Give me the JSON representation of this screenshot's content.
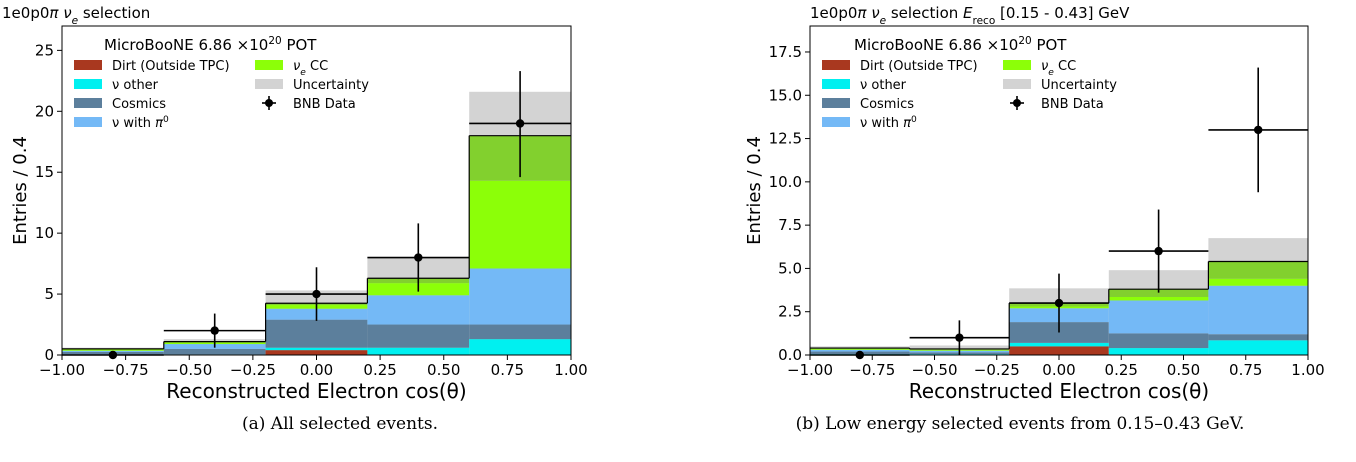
{
  "colors": {
    "dirt": "#a9381f",
    "nu_other": "#00f0f0",
    "cosmics": "#5c7f9c",
    "nu_pi0": "#74b9f6",
    "nue_cc_dark": "#82d02e",
    "nue_cc_light": "#8cff08",
    "uncertainty": "#d3d3d3",
    "data": "#000000"
  },
  "captions": [
    "(a) All selected events.",
    "(b) Low energy selected events from 0.15–0.43 GeV."
  ],
  "chart_data": [
    {
      "type": "bar",
      "title": "1e0p0π νe selection",
      "xlabel": "Reconstructed Electron cos(θ)",
      "ylabel": "Entries / 0.4",
      "xlim": [
        -1.0,
        1.0
      ],
      "ylim": [
        0,
        27
      ],
      "xticks": [
        "−1.00",
        "−0.75",
        "−0.50",
        "−0.25",
        "0.00",
        "0.25",
        "0.50",
        "0.75",
        "1.00"
      ],
      "yticks": [
        0,
        5,
        10,
        15,
        20,
        25
      ],
      "annotation": "MicroBooNE 6.86 ×10^20 POT",
      "legend": [
        "Dirt (Outside TPC)",
        "ν other",
        "Cosmics",
        "ν with π0",
        "νe CC",
        "Uncertainty",
        "BNB Data"
      ],
      "bin_edges": [
        -1.0,
        -0.6,
        -0.2,
        0.2,
        0.6,
        1.0
      ],
      "stack": [
        {
          "name": "Dirt (Outside TPC)",
          "values": [
            0.0,
            0.0,
            0.4,
            0.0,
            0.0
          ]
        },
        {
          "name": "ν other",
          "values": [
            0.05,
            0.05,
            0.2,
            0.6,
            1.3
          ]
        },
        {
          "name": "Cosmics",
          "values": [
            0.2,
            0.45,
            2.3,
            1.9,
            1.2
          ]
        },
        {
          "name": "ν with π0",
          "values": [
            0.1,
            0.4,
            0.9,
            2.4,
            4.6
          ]
        },
        {
          "name": "νe CC",
          "values": [
            0.15,
            0.2,
            0.45,
            1.4,
            10.9
          ]
        }
      ],
      "nue_split": [
        0.1,
        0.12,
        0.3,
        1.0,
        7.2
      ],
      "uncertainty_top": [
        0.6,
        1.3,
        5.3,
        8.0,
        21.6
      ],
      "data": {
        "x": [
          -0.8,
          -0.4,
          0.0,
          0.4,
          0.8
        ],
        "y": [
          0,
          2,
          5,
          8,
          19
        ],
        "yerr_lo": [
          0,
          1.4,
          2.2,
          2.8,
          4.4
        ],
        "yerr_hi": [
          0,
          1.4,
          2.2,
          2.8,
          4.3
        ]
      }
    },
    {
      "type": "bar",
      "title": "1e0p0π νe selection Ereco [0.15 - 0.43] GeV",
      "xlabel": "Reconstructed Electron cos(θ)",
      "ylabel": "Entries / 0.4",
      "xlim": [
        -1.0,
        1.0
      ],
      "ylim": [
        0,
        19
      ],
      "xticks": [
        "−1.00",
        "−0.75",
        "−0.50",
        "−0.25",
        "0.00",
        "0.25",
        "0.50",
        "0.75",
        "1.00"
      ],
      "yticks": [
        "0.0",
        "2.5",
        "5.0",
        "7.5",
        "10.0",
        "12.5",
        "15.0",
        "17.5"
      ],
      "annotation": "MicroBooNE 6.86 ×10^20 POT",
      "legend": [
        "Dirt (Outside TPC)",
        "ν other",
        "Cosmics",
        "ν with π0",
        "νe CC",
        "Uncertainty",
        "BNB Data"
      ],
      "bin_edges": [
        -1.0,
        -0.6,
        -0.2,
        0.2,
        0.6,
        1.0
      ],
      "stack": [
        {
          "name": "Dirt (Outside TPC)",
          "values": [
            0.0,
            0.0,
            0.5,
            0.0,
            0.0
          ]
        },
        {
          "name": "ν other",
          "values": [
            0.05,
            0.05,
            0.2,
            0.4,
            0.85
          ]
        },
        {
          "name": "Cosmics",
          "values": [
            0.15,
            0.1,
            1.2,
            0.85,
            0.35
          ]
        },
        {
          "name": "ν with π0",
          "values": [
            0.1,
            0.1,
            0.8,
            1.9,
            2.8
          ]
        },
        {
          "name": "νe CC",
          "values": [
            0.1,
            0.1,
            0.3,
            0.65,
            1.4
          ]
        }
      ],
      "nue_split": [
        0.05,
        0.05,
        0.1,
        0.2,
        0.4
      ],
      "uncertainty_top": [
        0.5,
        0.55,
        3.85,
        4.9,
        6.75
      ],
      "data": {
        "x": [
          -0.8,
          -0.4,
          0.0,
          0.4,
          0.8
        ],
        "y": [
          0,
          1,
          3,
          6,
          13
        ],
        "yerr_lo": [
          0,
          1.0,
          1.7,
          2.4,
          3.6
        ],
        "yerr_hi": [
          0,
          1.0,
          1.7,
          2.4,
          3.6
        ]
      }
    }
  ]
}
